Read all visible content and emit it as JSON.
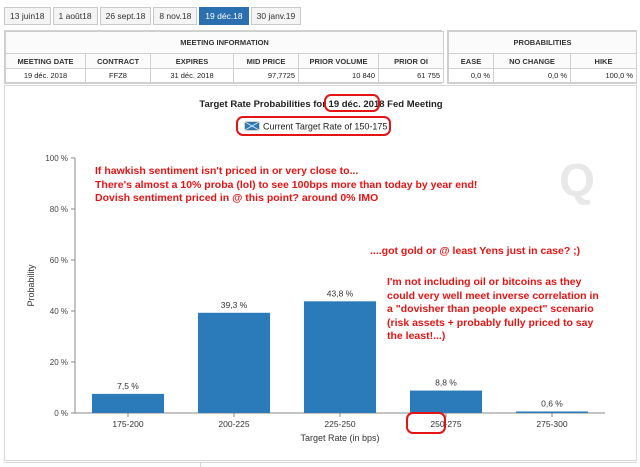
{
  "tabs": [
    "13 juin18",
    "1 août18",
    "26 sept.18",
    "8 nov.18",
    "19 déc.18",
    "30 janv.19"
  ],
  "active_tab": 4,
  "meeting_info": {
    "group_title": "MEETING INFORMATION",
    "columns": [
      "MEETING DATE",
      "CONTRACT",
      "EXPIRES",
      "MID PRICE",
      "PRIOR VOLUME",
      "PRIOR OI"
    ],
    "row": [
      "19 déc. 2018",
      "FFZ8",
      "31 déc. 2018",
      "97,7725",
      "10 840",
      "61 755"
    ]
  },
  "probabilities": {
    "group_title": "PROBABILITIES",
    "columns": [
      "EASE",
      "NO CHANGE",
      "HIKE"
    ],
    "row": [
      "0,0 %",
      "0,0 %",
      "100,0 %"
    ]
  },
  "chart": {
    "title_prefix": "Target Rate Probabilities for ",
    "title_date": "19 déc. 2018",
    "title_suffix": " Fed Meeting",
    "legend_label": "Current Target Rate of 150-175",
    "watermark": "Q"
  },
  "colors": {
    "bar": "#2b7bba",
    "annotation": "#e41414",
    "tab_active": "#2a6fb0"
  },
  "annotations": {
    "block1": [
      "If hawkish sentiment isn't priced in or very close to...",
      "There's almost a 10% proba (lol) to see 100bps more than today by year end!",
      "Dovish sentiment priced in @ this point? around 0% IMO"
    ],
    "block2": "....got gold or @ least Yens just in case? ;)",
    "block3": [
      "I'm not including oil or bitcoins as they",
      "could very well meet inverse correlation in",
      "a \"dovisher than people expect\" scenario",
      "(risk assets + probably fully priced to say",
      "the least!...)"
    ]
  },
  "chart_data": {
    "type": "bar",
    "title": "Target Rate Probabilities for 19 déc. 2018 Fed Meeting",
    "xlabel": "Target Rate (in bps)",
    "ylabel": "Probability",
    "categories": [
      "175-200",
      "200-225",
      "225-250",
      "250-275",
      "275-300"
    ],
    "values": [
      7.5,
      39.3,
      43.8,
      8.8,
      0.6
    ],
    "value_labels": [
      "7,5 %",
      "39,3 %",
      "43,8 %",
      "8,8 %",
      "0,6 %"
    ],
    "yticks": [
      "0 %",
      "20 %",
      "40 %",
      "60 %",
      "80 %",
      "100 %"
    ],
    "ylim": [
      0,
      100
    ],
    "legend": "top-center",
    "grid": false
  }
}
